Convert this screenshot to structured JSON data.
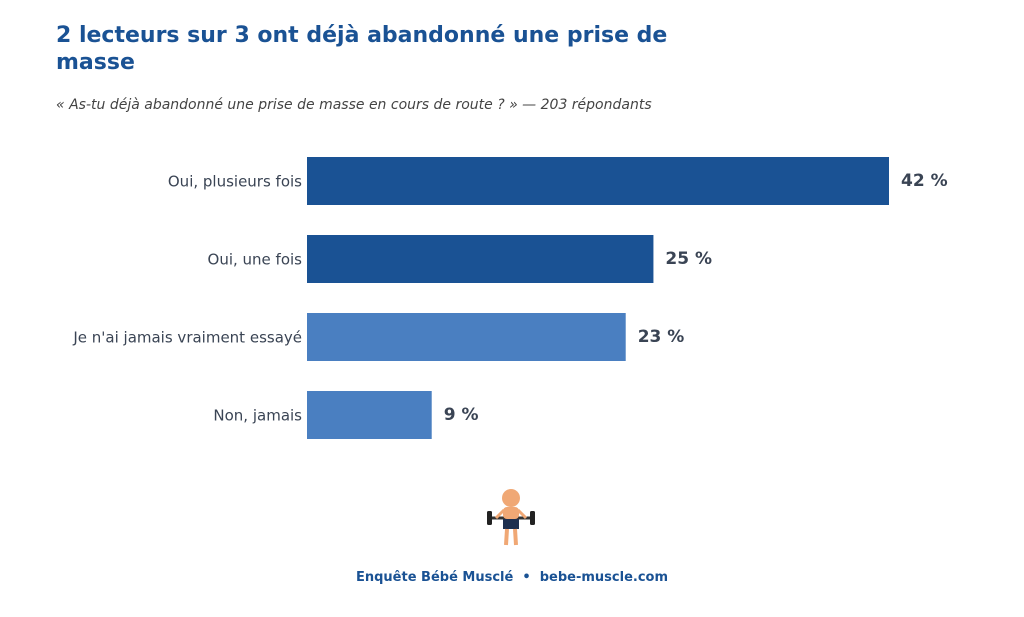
{
  "chart_data": {
    "type": "hbar",
    "title": "2 lecteurs sur 3 ont déjà abandonné une prise de masse",
    "subtitle": "« As-tu déjà abandonné une prise de masse en cours de route ? » — 203 répondants",
    "categories": [
      "Oui, plusieurs fois",
      "Oui, une fois",
      "Je n'ai jamais vraiment essayé",
      "Non, jamais"
    ],
    "values": [
      42,
      25,
      23,
      9
    ],
    "value_labels": [
      "42 %",
      "25 %",
      "23 %",
      "9 %"
    ],
    "colors": [
      "#1a5294",
      "#1a5294",
      "#4a7fc1",
      "#4a7fc1"
    ],
    "footer": "Enquête Bébé Musclé  •  bebe-muscle.com"
  }
}
